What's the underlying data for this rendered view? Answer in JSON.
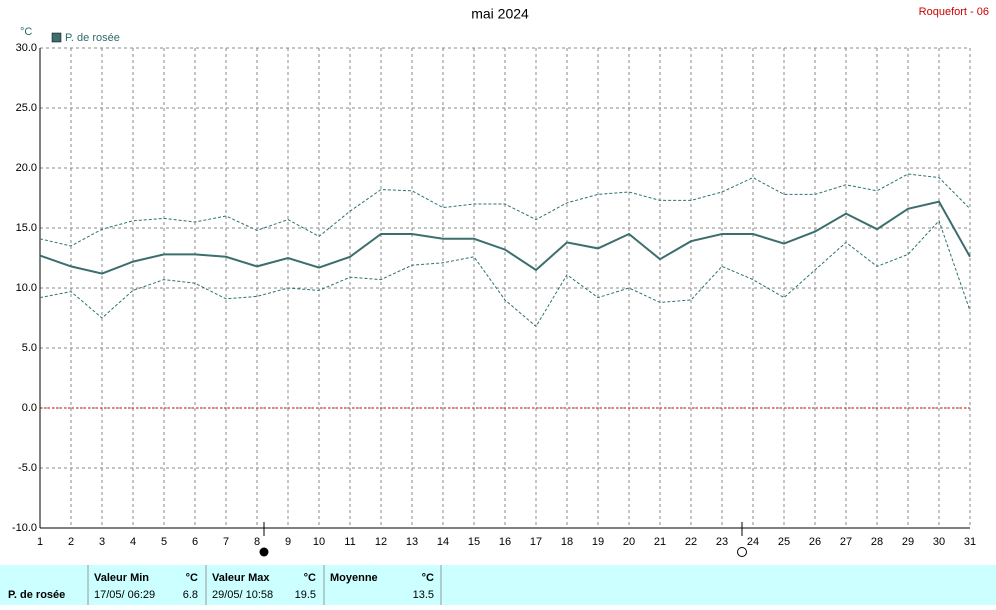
{
  "chart_data": {
    "type": "line",
    "title": "mai 2024",
    "station": "Roquefort - 06",
    "y_label": "°C",
    "x": [
      1,
      2,
      3,
      4,
      5,
      6,
      7,
      8,
      9,
      10,
      11,
      12,
      13,
      14,
      15,
      16,
      17,
      18,
      19,
      20,
      21,
      22,
      23,
      24,
      25,
      26,
      27,
      28,
      29,
      30,
      31
    ],
    "xlim": [
      1,
      31
    ],
    "xticks": [
      1,
      2,
      3,
      4,
      5,
      6,
      7,
      8,
      9,
      10,
      11,
      12,
      13,
      14,
      15,
      16,
      17,
      18,
      19,
      20,
      21,
      22,
      23,
      24,
      25,
      26,
      27,
      28,
      29,
      30,
      31
    ],
    "ylim": [
      -10,
      30
    ],
    "yticks": [
      {
        "value": -10,
        "label": "-10.0"
      },
      {
        "value": -5,
        "label": "-5.0"
      },
      {
        "value": 0,
        "label": "0.0"
      },
      {
        "value": 5,
        "label": "5.0"
      },
      {
        "value": 10,
        "label": "10.0"
      },
      {
        "value": 15,
        "label": "15.0"
      },
      {
        "value": 20,
        "label": "20.0"
      },
      {
        "value": 25,
        "label": "25.0"
      },
      {
        "value": 30,
        "label": "30.0"
      }
    ],
    "grid": true,
    "reference_line": {
      "value": 0,
      "color": "#dd0000"
    },
    "series": [
      {
        "name": "P. de rosée",
        "color": "#3d6e6e",
        "values": [
          12.7,
          11.8,
          11.2,
          12.2,
          12.8,
          12.8,
          12.6,
          11.8,
          12.5,
          11.7,
          12.6,
          14.5,
          14.5,
          14.1,
          14.1,
          13.2,
          11.5,
          13.8,
          13.3,
          14.5,
          12.4,
          13.9,
          14.5,
          14.5,
          13.7,
          14.7,
          16.2,
          14.9,
          16.6,
          17.2,
          12.6
        ]
      },
      {
        "color": "#2e7070",
        "dashed": true,
        "values": [
          14.1,
          13.5,
          14.9,
          15.6,
          15.8,
          15.5,
          16.0,
          14.8,
          15.7,
          14.3,
          16.4,
          18.2,
          18.1,
          16.7,
          17.0,
          17.0,
          15.7,
          17.1,
          17.8,
          18.0,
          17.3,
          17.3,
          18.0,
          19.2,
          17.8,
          17.8,
          18.6,
          18.1,
          19.5,
          19.2,
          16.6
        ]
      },
      {
        "color": "#2e7070",
        "dashed": true,
        "values": [
          9.2,
          9.7,
          7.5,
          9.8,
          10.7,
          10.4,
          9.1,
          9.3,
          10.0,
          9.8,
          10.9,
          10.7,
          11.9,
          12.1,
          12.6,
          9.0,
          6.8,
          11.1,
          9.2,
          10.0,
          8.8,
          9.0,
          11.8,
          10.7,
          9.2,
          11.5,
          13.8,
          11.8,
          12.8,
          15.6,
          8.1
        ]
      }
    ]
  },
  "stats": {
    "min": {
      "header": "Valeur Min",
      "unit": "°C",
      "date": "17/05/ 06:29",
      "value": 6.8
    },
    "max": {
      "header": "Valeur Max",
      "unit": "°C",
      "date": "29/05/ 10:58",
      "value": 19.5
    },
    "mean": {
      "header": "Moyenne",
      "unit": "°C",
      "value": 13.5
    }
  }
}
